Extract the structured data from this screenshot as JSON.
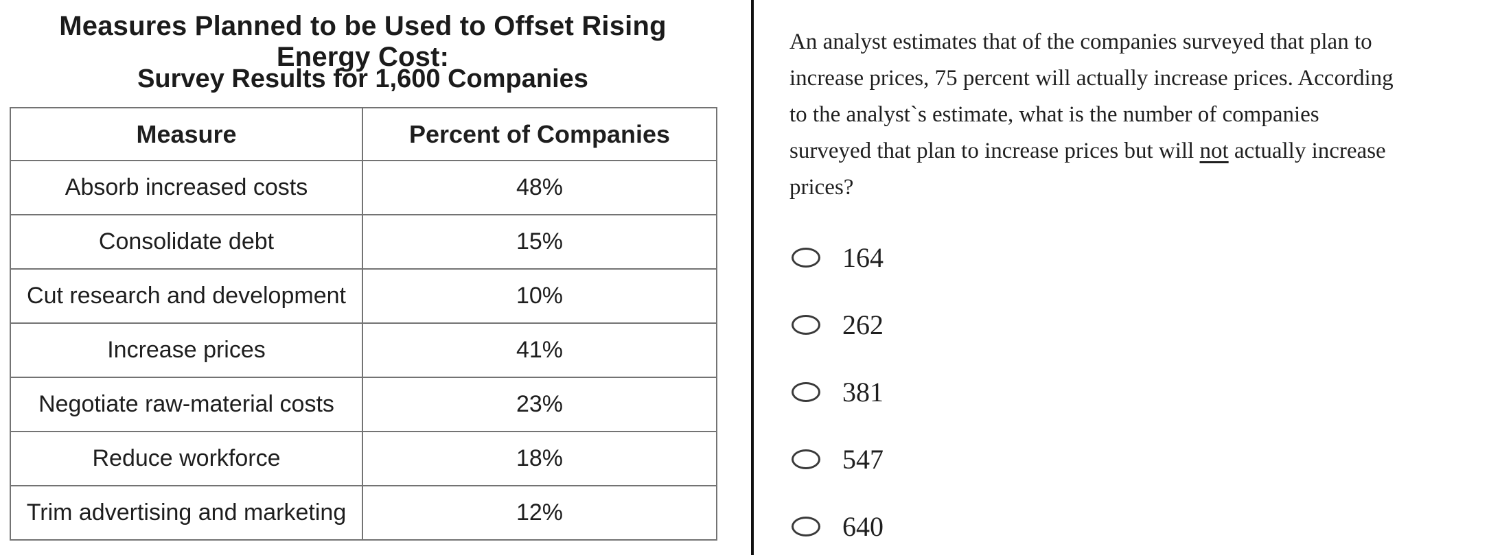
{
  "left_panel": {
    "title_line1": "Measures Planned to be Used to Offset Rising Energy Cost:",
    "title_line2": "Survey Results for 1,600 Companies",
    "table": {
      "headers": [
        "Measure",
        "Percent of Companies"
      ],
      "rows": [
        {
          "measure": "Absorb increased costs",
          "percent": "48%"
        },
        {
          "measure": "Consolidate debt",
          "percent": "15%"
        },
        {
          "measure": "Cut research and development",
          "percent": "10%"
        },
        {
          "measure": "Increase prices",
          "percent": "41%"
        },
        {
          "measure": "Negotiate raw-material costs",
          "percent": "23%"
        },
        {
          "measure": "Reduce workforce",
          "percent": "18%"
        },
        {
          "measure": "Trim advertising and marketing",
          "percent": "12%"
        }
      ]
    }
  },
  "right_panel": {
    "question": {
      "line1": "An analyst estimates that of the companies surveyed that plan to",
      "line2": "increase prices, 75 percent will actually increase prices. According",
      "line3": "to the analyst`s estimate, what is the number of companies",
      "line4_pre": "surveyed that plan to increase prices but will ",
      "line4_underlined": "not",
      "line4_post": " actually increase",
      "line5": "prices?"
    },
    "options": [
      {
        "value": "164"
      },
      {
        "value": "262"
      },
      {
        "value": "381"
      },
      {
        "value": "547"
      },
      {
        "value": "640"
      }
    ]
  },
  "chart_data": {
    "type": "table",
    "title": "Measures Planned to be Used to Offset Rising Energy Cost:",
    "subtitle": "Survey Results for 1,600 Companies",
    "columns": [
      "Measure",
      "Percent of Companies"
    ],
    "categories": [
      "Absorb increased costs",
      "Consolidate debt",
      "Cut research and development",
      "Increase prices",
      "Negotiate raw-material costs",
      "Reduce workforce",
      "Trim advertising and marketing"
    ],
    "values": [
      48,
      15,
      10,
      41,
      23,
      18,
      12
    ]
  },
  "colors": {
    "text": "#1e1e1e",
    "table_border": "#737373",
    "divider": "#101010",
    "radio_border": "#3a3a3a",
    "background": "#ffffff"
  }
}
